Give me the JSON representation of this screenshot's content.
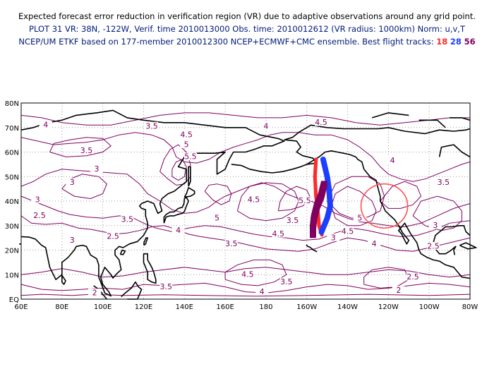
{
  "header": {
    "line1": "Expected forecast error reduction in verification region (VR) due to adaptive observations around any grid point.",
    "line2": "PLOT 31 VR: 38N, -122W, Verif. time 2010013000 Obs. time: 2010012612 (VR radius: 1000km) Norm: u,v,T",
    "line3_prefix": "NCEP/UM ETKF based on 177-member 2010012300 NCEP+ECMWF+CMC ensemble. Best flight tracks:",
    "track_a": "18",
    "track_b": "28",
    "track_c": "56"
  },
  "map": {
    "lat_labels": [
      "80N",
      "70N",
      "60N",
      "50N",
      "40N",
      "30N",
      "20N",
      "10N",
      "EQ"
    ],
    "lon_labels": [
      "60E",
      "80E",
      "100E",
      "120E",
      "140E",
      "160E",
      "180",
      "160W",
      "140W",
      "120W",
      "100W",
      "80W"
    ],
    "contour_labels": [
      {
        "text": "4.5",
        "lon": 171,
        "lat": 9.5
      },
      {
        "text": "4.5",
        "lon": 207,
        "lat": 71.5
      },
      {
        "text": "4.5",
        "lon": 295,
        "lat": 61.5
      },
      {
        "text": "4",
        "lon": 72,
        "lat": 70.5
      },
      {
        "text": "4",
        "lon": 180,
        "lat": 70
      },
      {
        "text": "4",
        "lon": 242,
        "lat": 56
      },
      {
        "text": "4",
        "lon": 295,
        "lat": 36
      },
      {
        "text": "4",
        "lon": 233,
        "lat": 22
      },
      {
        "text": "4",
        "lon": 137,
        "lat": 27.5
      },
      {
        "text": "4",
        "lon": 178,
        "lat": 2.5
      },
      {
        "text": "3.5",
        "lon": 124,
        "lat": 70
      },
      {
        "text": "3.5",
        "lon": 92,
        "lat": 60
      },
      {
        "text": "3.5",
        "lon": 267,
        "lat": 47
      },
      {
        "text": "3.5",
        "lon": 193,
        "lat": 31.5
      },
      {
        "text": "3.5",
        "lon": 163,
        "lat": 22
      },
      {
        "text": "3.5",
        "lon": 112,
        "lat": 32
      },
      {
        "text": "3.5",
        "lon": 190,
        "lat": 6.5
      },
      {
        "text": "3.5",
        "lon": 131,
        "lat": 4.5
      },
      {
        "text": "3",
        "lon": 97,
        "lat": 52.5
      },
      {
        "text": "3",
        "lon": 85,
        "lat": 47
      },
      {
        "text": "3",
        "lon": 68,
        "lat": 40
      },
      {
        "text": "3",
        "lon": 263,
        "lat": 29.5
      },
      {
        "text": "3",
        "lon": 213,
        "lat": 24.5
      },
      {
        "text": "3",
        "lon": 85,
        "lat": 23.5
      },
      {
        "text": "2.5",
        "lon": 69,
        "lat": 33.5
      },
      {
        "text": "2.5",
        "lon": 105,
        "lat": 25
      },
      {
        "text": "2.5",
        "lon": 252,
        "lat": 8.5
      },
      {
        "text": "2.5",
        "lon": 262,
        "lat": 21
      },
      {
        "text": "2",
        "lon": 96,
        "lat": 2
      },
      {
        "text": "2",
        "lon": 245,
        "lat": 3
      },
      {
        "text": "5.5",
        "lon": 143,
        "lat": 57.5
      },
      {
        "text": "5.5",
        "lon": 199,
        "lat": 39.5
      },
      {
        "text": "5",
        "lon": 141,
        "lat": 62.5
      },
      {
        "text": "5",
        "lon": 156,
        "lat": 32.5
      },
      {
        "text": "5",
        "lon": 226,
        "lat": 32.5
      },
      {
        "text": "4.5",
        "lon": 141,
        "lat": 66.5
      },
      {
        "text": "4.5",
        "lon": 174,
        "lat": 40
      },
      {
        "text": "4.5",
        "lon": 186,
        "lat": 26
      },
      {
        "text": "4.5",
        "lon": 220,
        "lat": 27
      }
    ],
    "vr_circle": {
      "lat": 38,
      "lon": -122,
      "radius_km": 1000,
      "color": "#ff5050"
    },
    "tracks": [
      {
        "name": "18",
        "color": "#ff2a2a",
        "symbol": "dot",
        "lon": [
          -155.5,
          -156,
          -155.5,
          -154.5,
          -154,
          -152.5
        ],
        "lat": [
          57,
          50,
          42,
          35,
          30,
          26
        ]
      },
      {
        "name": "28",
        "color": "#1c3fff",
        "symbol": "circle",
        "lon": [
          -152,
          -150,
          -149,
          -148.5,
          -150,
          -153
        ],
        "lat": [
          57,
          50,
          44,
          38,
          33,
          27
        ]
      },
      {
        "name": "56",
        "color": "#800060",
        "symbol": "square",
        "lon": [
          -151.5,
          -153,
          -155,
          -156.5,
          -157,
          -157
        ],
        "lat": [
          47,
          42,
          38,
          33,
          29,
          26
        ]
      }
    ]
  }
}
